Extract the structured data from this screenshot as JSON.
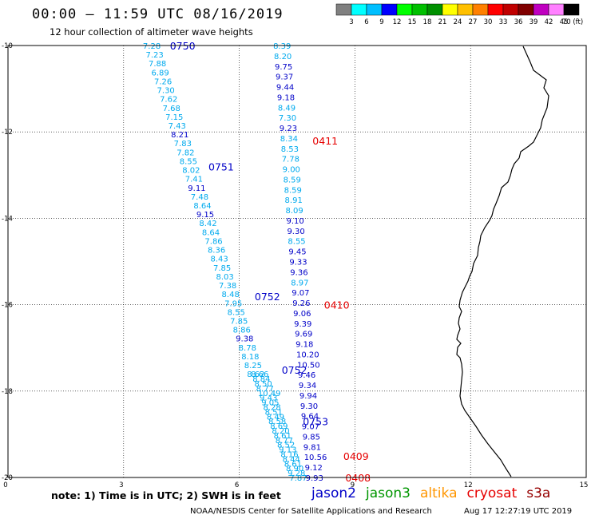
{
  "title": "00:00 – 11:59 UTC 08/16/2019",
  "subtitle": "12 hour collection of altimeter wave heights",
  "note": "note: 1) Time is in UTC; 2) SWH is in feet",
  "credit_left": "NOAA/NESDIS Center for Satellite Applications and Research",
  "credit_right": "Aug 17 12:27:19 UTC 2019",
  "colorbar": {
    "colors": [
      "#808080",
      "#00ffff",
      "#00bfff",
      "#0000ff",
      "#00ff00",
      "#00c000",
      "#009000",
      "#ffff00",
      "#ffc000",
      "#ff8000",
      "#ff0000",
      "#c00000",
      "#800000",
      "#c000c0",
      "#ff80ff",
      "#000000"
    ],
    "labels": [
      "3",
      "6",
      "9",
      "12",
      "15",
      "18",
      "21",
      "24",
      "27",
      "30",
      "33",
      "36",
      "39",
      "42",
      "45",
      "70 (ft)"
    ]
  },
  "satellites": [
    {
      "name": "jason2",
      "color": "#0000c8"
    },
    {
      "name": "jason3",
      "color": "#009600"
    },
    {
      "name": "altika",
      "color": "#ff9600"
    },
    {
      "name": "cryosat",
      "color": "#e60000"
    },
    {
      "name": "s3a",
      "color": "#960000"
    }
  ],
  "color_light": "#00aaee",
  "color_dark": "#0000c8",
  "color_red": "#e60000",
  "map": {
    "lon_range": [
      0,
      15
    ],
    "lat_range": [
      -20,
      -10
    ],
    "lon_ticks": [
      "0",
      "3",
      "6",
      "9",
      "12",
      "15"
    ],
    "lat_ticks": [
      "-10",
      "-12",
      "-14",
      "-16",
      "-18",
      "-20"
    ]
  },
  "track_left": {
    "values": [
      "7.28",
      "7.23",
      "7.88",
      "6.89",
      "7.26",
      "7.30",
      "7.62",
      "7.68",
      "7.15",
      "7.43",
      "8.21",
      "7.83",
      "7.82",
      "8.55",
      "8.02",
      "7.41",
      "9.11",
      "7.48",
      "8.64",
      "9.15",
      "8.42",
      "8.64",
      "7.86",
      "8.36",
      "8.43",
      "7.85",
      "8.03",
      "7.38",
      "8.48",
      "7.95",
      "8.55",
      "7.85",
      "8.86",
      "9.38",
      "8.78",
      "8.18",
      "8.25",
      "8.62"
    ],
    "dark": [
      "8.21",
      "9.11",
      "9.15",
      "9.38"
    ]
  },
  "track_right": {
    "values": [
      "8.39",
      "8.20",
      "9.75",
      "9.37",
      "9.44",
      "9.18",
      "8.49",
      "7.30",
      "9.23",
      "8.34",
      "8.53",
      "7.78",
      "9.00",
      "8.59",
      "8.59",
      "8.91",
      "8.09",
      "9.10",
      "9.30",
      "8.55",
      "9.45",
      "9.33",
      "9.36",
      "8.97",
      "9.07",
      "9.26",
      "9.06",
      "9.39",
      "9.69",
      "9.18",
      "10.20",
      "10.50",
      "9.46",
      "9.34",
      "9.94",
      "9.30",
      "9.64",
      "9.07",
      "9.85",
      "9.81",
      "10.56",
      "9.12",
      "9.93"
    ],
    "light": [
      "8.39",
      "8.20",
      "8.49",
      "7.30",
      "8.34",
      "8.53",
      "7.78",
      "9.00",
      "8.59",
      "8.59",
      "8.91",
      "8.09",
      "8.55",
      "8.97"
    ]
  },
  "cluster": {
    "values": [
      "8.66",
      "8.84",
      "8.50",
      "8.77",
      "10.49",
      "9.43",
      "9.05",
      "8.28",
      "8.51",
      "8.49",
      "8.58",
      "8.69",
      "8.20",
      "8.61",
      "8.77",
      "8.52",
      "9.13",
      "8.16",
      "8.44",
      "8.61",
      "8.90",
      "9.28",
      "7.87"
    ]
  },
  "time_labels": [
    {
      "text": "0750",
      "lon": 4.2,
      "lat": -10.0,
      "color": "#0000c8"
    },
    {
      "text": "0751",
      "lon": 5.2,
      "lat": -12.8,
      "color": "#0000c8"
    },
    {
      "text": "0752",
      "lon": 6.4,
      "lat": -15.8,
      "color": "#0000c8"
    },
    {
      "text": "0752",
      "lon": 7.1,
      "lat": -17.5,
      "color": "#0000c8"
    },
    {
      "text": "0753",
      "lon": 7.65,
      "lat": -18.7,
      "color": "#0000c8"
    },
    {
      "text": "0411",
      "lon": 7.9,
      "lat": -12.2,
      "color": "#e60000"
    },
    {
      "text": "0410",
      "lon": 8.2,
      "lat": -16.0,
      "color": "#e60000"
    },
    {
      "text": "0409",
      "lon": 8.7,
      "lat": -19.5,
      "color": "#e60000"
    },
    {
      "text": "0408",
      "lon": 8.75,
      "lat": -20.0,
      "color": "#e60000"
    }
  ]
}
